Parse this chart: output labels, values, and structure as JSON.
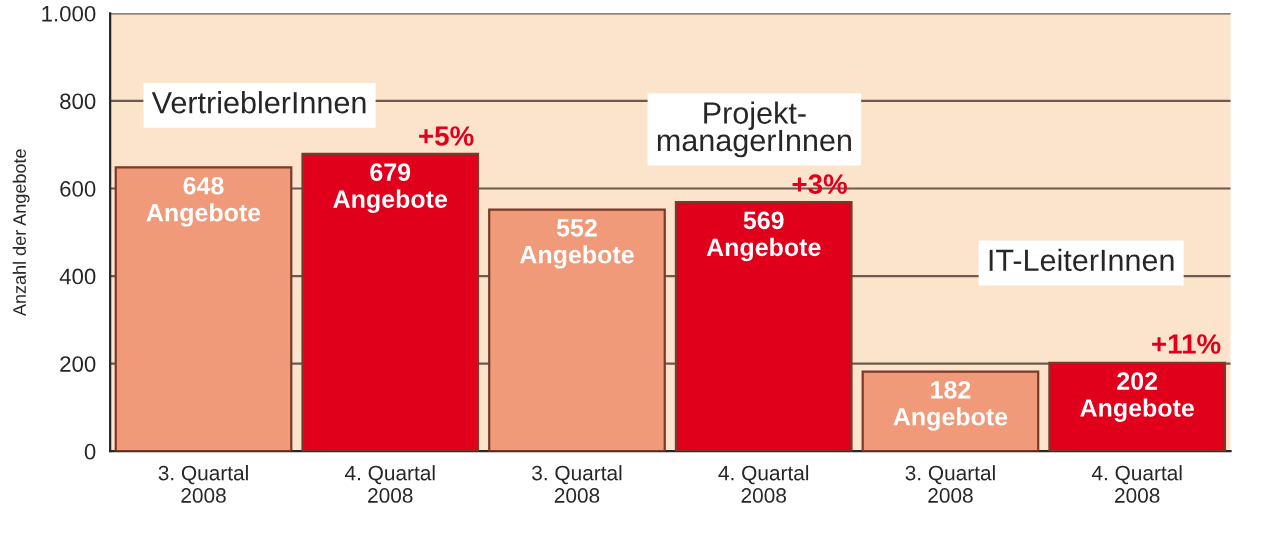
{
  "chart_data": {
    "type": "bar",
    "ylabel": "Anzahl der Angebote",
    "categories": [
      "3. Quartal\n2008",
      "4. Quartal\n2008",
      "3. Quartal\n2008",
      "4. Quartal\n2008",
      "3. Quartal\n2008",
      "4. Quartal\n2008"
    ],
    "values": [
      648,
      679,
      552,
      569,
      182,
      202
    ],
    "colors": [
      "#f09a7a",
      "#e0001b",
      "#f09a7a",
      "#e0001b",
      "#f09a7a",
      "#e0001b"
    ],
    "value_labels": [
      "648\nAngebote",
      "679\nAngebote",
      "552\nAngebote",
      "569\nAngebote",
      "182\nAngebote",
      "202\nAngebote"
    ],
    "ylim": [
      0,
      1000
    ],
    "yticks": [
      0,
      200,
      400,
      600,
      800,
      {
        "value": 1000,
        "label": "1.000"
      }
    ],
    "grid": "y",
    "annotations": [
      "VertrieblerInnen",
      "Projekt-\nmanagerInnen",
      "IT-LeiterInnen",
      "+5%",
      "+3%",
      "+11%"
    ]
  }
}
